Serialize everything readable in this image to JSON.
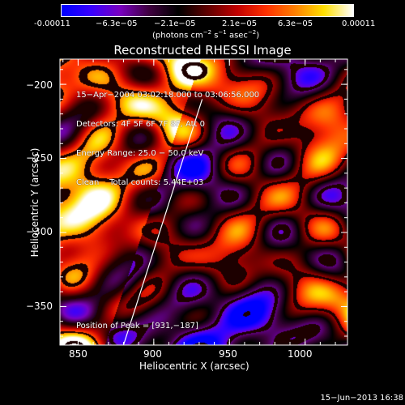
{
  "colorbar": {
    "ticks": [
      "-0.00011",
      "−6.3e−05",
      "−2.1e−05",
      "2.1e−05",
      "6.3e−05",
      "0.00011"
    ],
    "unit_main": "(photons cm",
    "unit_exp1": "−2",
    "unit_s": " s",
    "unit_exp2": "−1",
    "unit_asec": " asec",
    "unit_exp3": "−2",
    "unit_close": ")",
    "colors": [
      "#0000ff",
      "#3a00ff",
      "#7a00c0",
      "#400040",
      "#000000",
      "#600000",
      "#c00000",
      "#ff3000",
      "#ff8000",
      "#ffe000",
      "#ffffff"
    ]
  },
  "plot": {
    "title": "Reconstructed RHESSI Image",
    "xlabel": "Heliocentric X (arcsec)",
    "ylabel": "Heliocentric Y (arcsec)",
    "xticks": [
      "850",
      "900",
      "950",
      "1000"
    ],
    "yticks": [
      "−200",
      "−250",
      "−300",
      "−350"
    ],
    "xlim": [
      838,
      1028
    ],
    "ylim": [
      -376,
      -183
    ],
    "info": [
      "15−Apr−2004 03:02:18.000 to 03:06:56.000",
      "Detectors: 4F 5F 6F 7F 8F, Att 0",
      "Energy Range: 25.0 − 50.0 keV",
      "Clean    Total counts: 5.44E+03"
    ],
    "peak": "Position of Peak = [931,−187]",
    "limb_color": "#ffffff"
  },
  "footer": {
    "date": "15−Jun−2013 16:38"
  }
}
